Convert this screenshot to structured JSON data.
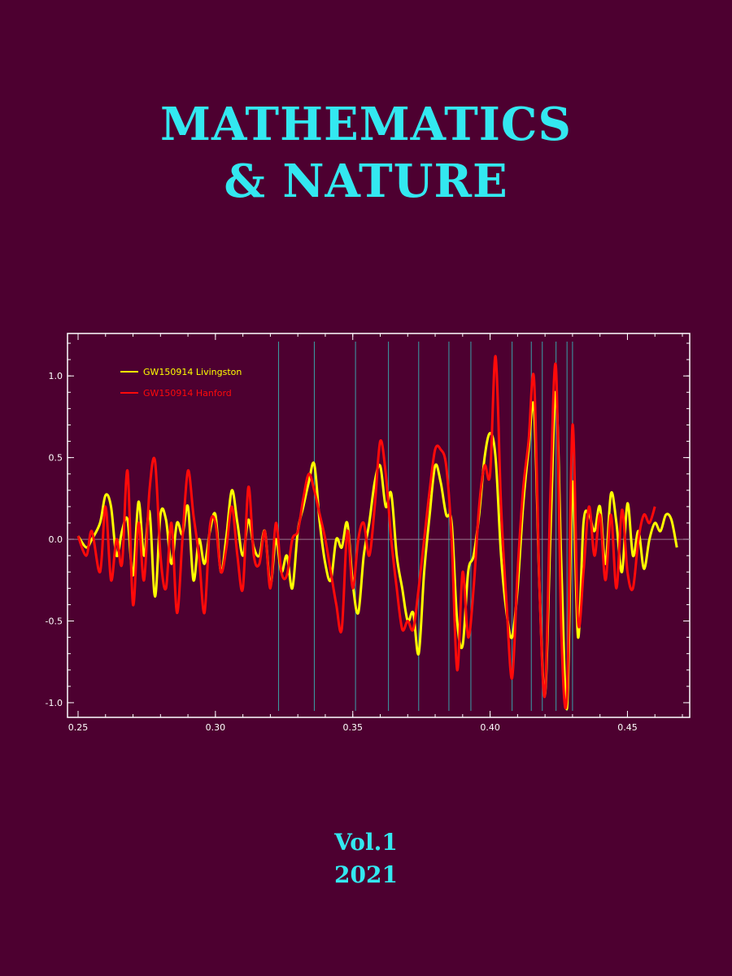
{
  "cover": {
    "title_line1": "MATHEMATICS",
    "title_line2": "& NATURE",
    "volume": "Vol.1",
    "year": "2021",
    "background_color": "#4d0030",
    "accent_color": "#33e8f0"
  },
  "chart_data": {
    "type": "line",
    "title": "",
    "xlabel": "",
    "ylabel": "",
    "xlim": [
      0.25,
      0.47
    ],
    "ylim": [
      -1.05,
      1.22
    ],
    "xticks": [
      "0.25",
      "0.30",
      "0.35",
      "0.40",
      "0.45"
    ],
    "yticks": [
      "-1.0",
      "-0.5",
      "0.0",
      "0.5",
      "1.0"
    ],
    "legend_position": "top-left",
    "grid": false,
    "vertical_markers": [
      0.323,
      0.336,
      0.351,
      0.363,
      0.374,
      0.385,
      0.393,
      0.408,
      0.415,
      0.419,
      0.424,
      0.428,
      0.43
    ],
    "series": [
      {
        "name": "GW150914 Livingston",
        "color": "#ffff00",
        "x": [
          0.25,
          0.253,
          0.255,
          0.258,
          0.26,
          0.262,
          0.264,
          0.266,
          0.268,
          0.27,
          0.272,
          0.274,
          0.276,
          0.278,
          0.28,
          0.282,
          0.284,
          0.286,
          0.288,
          0.29,
          0.292,
          0.294,
          0.296,
          0.298,
          0.3,
          0.302,
          0.304,
          0.306,
          0.308,
          0.31,
          0.312,
          0.314,
          0.316,
          0.318,
          0.32,
          0.322,
          0.324,
          0.326,
          0.328,
          0.33,
          0.332,
          0.334,
          0.336,
          0.338,
          0.34,
          0.342,
          0.344,
          0.346,
          0.348,
          0.35,
          0.352,
          0.354,
          0.356,
          0.358,
          0.36,
          0.362,
          0.364,
          0.366,
          0.368,
          0.37,
          0.372,
          0.374,
          0.376,
          0.378,
          0.38,
          0.382,
          0.384,
          0.386,
          0.388,
          0.39,
          0.392,
          0.394,
          0.396,
          0.398,
          0.4,
          0.402,
          0.404,
          0.406,
          0.408,
          0.41,
          0.412,
          0.414,
          0.416,
          0.418,
          0.42,
          0.422,
          0.424,
          0.426,
          0.428,
          0.43,
          0.432,
          0.434,
          0.436,
          0.438,
          0.44,
          0.442,
          0.444,
          0.446,
          0.448,
          0.45,
          0.452,
          0.454,
          0.456,
          0.458,
          0.46,
          0.462,
          0.464,
          0.466,
          0.468
        ],
        "y": [
          0.02,
          -0.05,
          0.0,
          0.1,
          0.27,
          0.2,
          -0.1,
          0.05,
          0.12,
          -0.22,
          0.23,
          -0.1,
          0.17,
          -0.35,
          0.15,
          0.12,
          -0.15,
          0.1,
          0.03,
          0.2,
          -0.25,
          0.0,
          -0.15,
          0.05,
          0.15,
          -0.2,
          0.02,
          0.3,
          0.1,
          -0.1,
          0.12,
          -0.05,
          -0.1,
          0.05,
          -0.28,
          0.0,
          -0.2,
          -0.1,
          -0.3,
          0.05,
          0.2,
          0.35,
          0.46,
          0.1,
          -0.15,
          -0.25,
          0.0,
          -0.05,
          0.1,
          -0.27,
          -0.45,
          -0.1,
          0.1,
          0.35,
          0.45,
          0.2,
          0.28,
          -0.1,
          -0.3,
          -0.5,
          -0.45,
          -0.7,
          -0.2,
          0.15,
          0.45,
          0.35,
          0.15,
          0.1,
          -0.5,
          -0.65,
          -0.2,
          -0.1,
          0.15,
          0.5,
          0.65,
          0.5,
          -0.1,
          -0.45,
          -0.6,
          -0.3,
          0.2,
          0.55,
          0.8,
          -0.3,
          -0.95,
          0.05,
          0.9,
          -0.2,
          -1.03,
          0.35,
          -0.6,
          0.1,
          0.15,
          0.05,
          0.2,
          -0.15,
          0.28,
          0.1,
          -0.2,
          0.22,
          -0.1,
          0.05,
          -0.18,
          0.0,
          0.1,
          0.05,
          0.15,
          0.12,
          -0.05
        ]
      },
      {
        "name": "GW150914 Hanford",
        "color": "#ff0a0a",
        "x": [
          0.25,
          0.253,
          0.255,
          0.258,
          0.26,
          0.262,
          0.264,
          0.266,
          0.268,
          0.27,
          0.272,
          0.274,
          0.276,
          0.278,
          0.28,
          0.282,
          0.284,
          0.286,
          0.288,
          0.29,
          0.292,
          0.294,
          0.296,
          0.298,
          0.3,
          0.302,
          0.304,
          0.306,
          0.308,
          0.31,
          0.312,
          0.314,
          0.316,
          0.318,
          0.32,
          0.322,
          0.324,
          0.326,
          0.328,
          0.33,
          0.332,
          0.334,
          0.336,
          0.338,
          0.34,
          0.342,
          0.344,
          0.346,
          0.348,
          0.35,
          0.352,
          0.354,
          0.356,
          0.358,
          0.36,
          0.362,
          0.364,
          0.366,
          0.368,
          0.37,
          0.372,
          0.374,
          0.376,
          0.378,
          0.38,
          0.382,
          0.384,
          0.386,
          0.388,
          0.39,
          0.392,
          0.394,
          0.396,
          0.398,
          0.4,
          0.402,
          0.404,
          0.406,
          0.408,
          0.41,
          0.412,
          0.414,
          0.416,
          0.418,
          0.42,
          0.422,
          0.424,
          0.426,
          0.428,
          0.43,
          0.432,
          0.434,
          0.436,
          0.438,
          0.44,
          0.442,
          0.444,
          0.446,
          0.448,
          0.45,
          0.452,
          0.454,
          0.456,
          0.458,
          0.46
        ],
        "y": [
          0.02,
          -0.1,
          0.05,
          -0.2,
          0.2,
          -0.25,
          0.0,
          -0.15,
          0.42,
          -0.4,
          0.1,
          -0.25,
          0.3,
          0.48,
          -0.1,
          -0.3,
          0.1,
          -0.45,
          0.0,
          0.42,
          0.15,
          -0.1,
          -0.45,
          0.08,
          0.1,
          -0.2,
          -0.05,
          0.2,
          -0.1,
          -0.3,
          0.32,
          -0.1,
          -0.15,
          0.05,
          -0.3,
          0.1,
          -0.2,
          -0.22,
          0.0,
          0.05,
          0.25,
          0.4,
          0.3,
          0.15,
          0.0,
          -0.2,
          -0.4,
          -0.55,
          0.05,
          -0.3,
          0.0,
          0.1,
          -0.1,
          0.2,
          0.6,
          0.4,
          0.0,
          -0.3,
          -0.55,
          -0.5,
          -0.55,
          -0.3,
          0.0,
          0.3,
          0.55,
          0.55,
          0.45,
          0.0,
          -0.8,
          -0.2,
          -0.6,
          -0.3,
          0.2,
          0.45,
          0.4,
          1.12,
          0.2,
          -0.4,
          -0.85,
          -0.2,
          0.3,
          0.6,
          0.98,
          -0.3,
          -0.95,
          0.3,
          1.05,
          -0.6,
          -0.95,
          0.7,
          -0.5,
          -0.2,
          0.2,
          -0.1,
          0.15,
          -0.25,
          0.15,
          -0.3,
          0.18,
          -0.2,
          -0.3,
          0.0,
          0.15,
          0.1,
          0.2
        ]
      }
    ]
  }
}
